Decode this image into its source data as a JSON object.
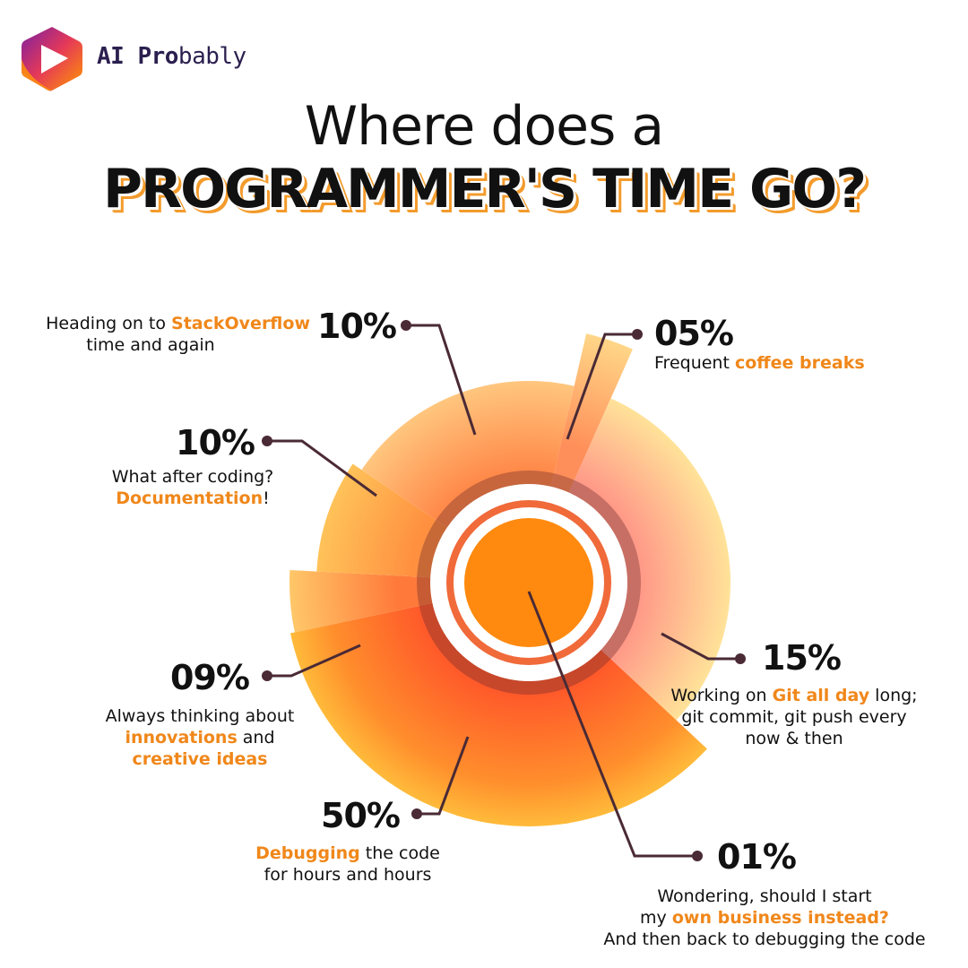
{
  "brand": {
    "name_bold": "AI Pro",
    "name_regular": "bably",
    "logo_icon": "play-hexagon-logo",
    "colors": {
      "purple": "#6a1b9a",
      "orange": "#ff8a00",
      "red": "#e53935"
    }
  },
  "title": {
    "line1": "Where does a",
    "line2": "PROGRAMMER'S TIME GO?"
  },
  "chart_data": {
    "type": "pie",
    "subtype": "radial-petal",
    "slices": [
      {
        "id": "stackoverflow",
        "value": 10,
        "label": "10%",
        "text": {
          "before": "Heading on to ",
          "highlight": "StackOverflow",
          "after": "",
          "line2": "time and again"
        }
      },
      {
        "id": "coffee",
        "value": 5,
        "label": "05%",
        "text": {
          "before": "Frequent ",
          "highlight": "coffee breaks",
          "after": ""
        }
      },
      {
        "id": "git",
        "value": 15,
        "label": "15%",
        "text": {
          "before": "Working on ",
          "highlight": "Git all day",
          "after": " long;",
          "line2": "git commit, git push every",
          "line3": "now & then"
        }
      },
      {
        "id": "business",
        "value": 1,
        "label": "01%",
        "text": {
          "line1": "Wondering, should I start",
          "before": "my ",
          "highlight": "own business instead?",
          "after": "",
          "line3": "And then back to debugging the code"
        }
      },
      {
        "id": "debugging",
        "value": 50,
        "label": "50%",
        "text": {
          "before": "",
          "highlight": "Debugging",
          "after": " the code",
          "line2": "for hours and hours"
        }
      },
      {
        "id": "innovations",
        "value": 9,
        "label": "09%",
        "text": {
          "line1": "Always thinking about",
          "before": "",
          "highlight": "innovations",
          "after": " and",
          "highlight2": "creative ideas"
        }
      },
      {
        "id": "documentation",
        "value": 10,
        "label": "10%",
        "text": {
          "line1": "What after coding?",
          "before": "",
          "highlight": "Documentation",
          "after": "!"
        }
      }
    ],
    "colors": {
      "highlight_text": "#f0871a",
      "leader_line": "#4a2a35",
      "center": "#ff8a0f"
    }
  }
}
